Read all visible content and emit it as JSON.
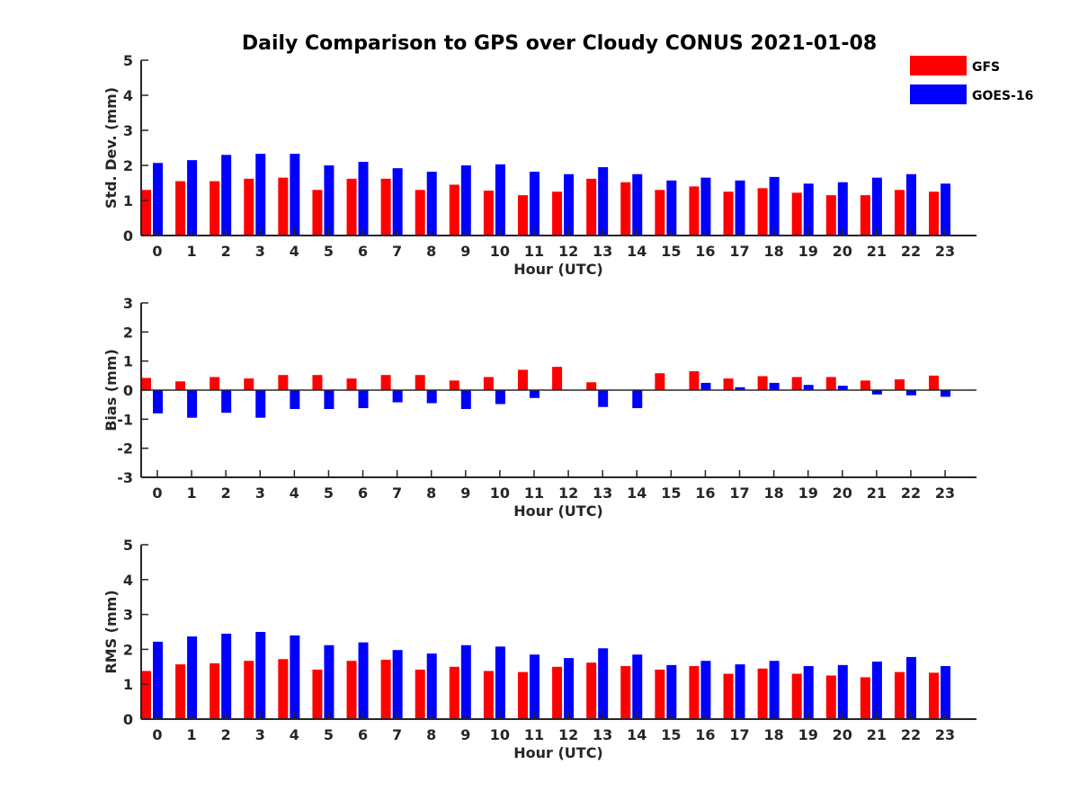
{
  "chart_data": {
    "type": "bar",
    "title": "Daily Comparison to GPS over Cloudy CONUS 2021-01-08",
    "legend": {
      "placement": "top-right",
      "entries": [
        "GFS",
        "GOES-16"
      ]
    },
    "colors": {
      "GFS": "#ff0000",
      "GOES-16": "#0000ff"
    },
    "categories": [
      "0",
      "1",
      "2",
      "3",
      "4",
      "5",
      "6",
      "7",
      "8",
      "9",
      "10",
      "11",
      "12",
      "13",
      "14",
      "15",
      "16",
      "17",
      "18",
      "19",
      "20",
      "21",
      "22",
      "23"
    ],
    "panels": [
      {
        "id": "std",
        "ylabel": "Std. Dev. (mm)",
        "xlabel": "Hour (UTC)",
        "ylim": [
          0,
          5
        ],
        "yticks": [
          0,
          1,
          2,
          3,
          4,
          5
        ],
        "grid": false,
        "series": [
          {
            "name": "GFS",
            "values": [
              1.3,
              1.55,
              1.55,
              1.62,
              1.65,
              1.3,
              1.62,
              1.62,
              1.3,
              1.45,
              1.28,
              1.15,
              1.25,
              1.62,
              1.52,
              1.3,
              1.4,
              1.25,
              1.35,
              1.22,
              1.15,
              1.15,
              1.3,
              1.25
            ]
          },
          {
            "name": "GOES-16",
            "values": [
              2.07,
              2.15,
              2.3,
              2.33,
              2.33,
              2.0,
              2.1,
              1.92,
              1.82,
              2.0,
              2.03,
              1.82,
              1.75,
              1.95,
              1.75,
              1.57,
              1.65,
              1.57,
              1.67,
              1.48,
              1.52,
              1.65,
              1.75,
              1.48
            ]
          }
        ]
      },
      {
        "id": "bias",
        "ylabel": "Bias (mm)",
        "xlabel": "Hour (UTC)",
        "ylim": [
          -3,
          3
        ],
        "yticks": [
          -3,
          -2,
          -1,
          0,
          1,
          2,
          3
        ],
        "grid": false,
        "series": [
          {
            "name": "GFS",
            "values": [
              0.42,
              0.3,
              0.45,
              0.4,
              0.52,
              0.52,
              0.4,
              0.52,
              0.52,
              0.33,
              0.45,
              0.7,
              0.8,
              0.27,
              0.0,
              0.58,
              0.65,
              0.4,
              0.48,
              0.45,
              0.45,
              0.33,
              0.37,
              0.5
            ]
          },
          {
            "name": "GOES-16",
            "values": [
              -0.8,
              -0.95,
              -0.78,
              -0.95,
              -0.65,
              -0.65,
              -0.62,
              -0.42,
              -0.45,
              -0.65,
              -0.48,
              -0.27,
              0.0,
              -0.58,
              -0.62,
              0.0,
              0.25,
              0.1,
              0.25,
              0.18,
              0.15,
              -0.15,
              -0.18,
              -0.23
            ]
          }
        ]
      },
      {
        "id": "rms",
        "ylabel": "RMS (mm)",
        "xlabel": "Hour (UTC)",
        "ylim": [
          0,
          5
        ],
        "yticks": [
          0,
          1,
          2,
          3,
          4,
          5
        ],
        "grid": false,
        "series": [
          {
            "name": "GFS",
            "values": [
              1.38,
              1.57,
              1.6,
              1.67,
              1.72,
              1.42,
              1.67,
              1.7,
              1.42,
              1.5,
              1.38,
              1.35,
              1.5,
              1.62,
              1.52,
              1.42,
              1.52,
              1.3,
              1.45,
              1.3,
              1.25,
              1.2,
              1.35,
              1.33
            ]
          },
          {
            "name": "GOES-16",
            "values": [
              2.22,
              2.37,
              2.45,
              2.5,
              2.4,
              2.12,
              2.2,
              1.98,
              1.88,
              2.12,
              2.08,
              1.85,
              1.75,
              2.03,
              1.85,
              1.55,
              1.67,
              1.57,
              1.67,
              1.52,
              1.55,
              1.65,
              1.78,
              1.52
            ]
          }
        ]
      }
    ]
  }
}
